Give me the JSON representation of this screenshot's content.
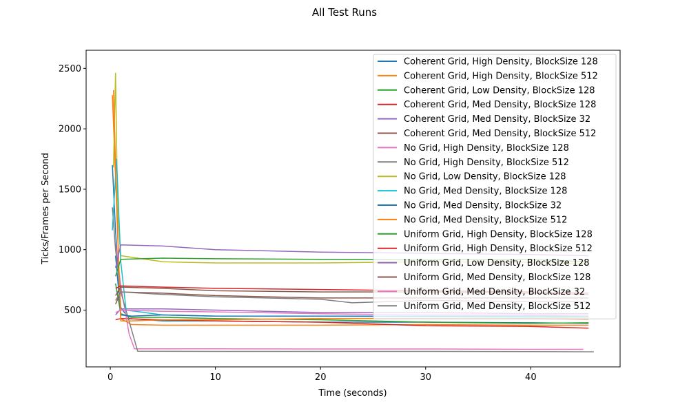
{
  "chart_data": {
    "type": "line",
    "title": "All Test Runs",
    "xlabel": "Time (seconds)",
    "ylabel": "Ticks/Frames per Second",
    "xlim": [
      -2.3,
      48.5
    ],
    "ylim": [
      30,
      2650
    ],
    "xticks": [
      0,
      10,
      20,
      30,
      40
    ],
    "yticks": [
      500,
      1000,
      1500,
      2000,
      2500
    ],
    "grid": false,
    "legend_position": "top-right",
    "series": [
      {
        "name": "Coherent Grid, High Density, BlockSize 128",
        "color": "#1f77b4",
        "points": [
          [
            0.2,
            1700
          ],
          [
            0.5,
            1150
          ],
          [
            1,
            520
          ],
          [
            1.8,
            430
          ],
          [
            5,
            410
          ],
          [
            10,
            410
          ],
          [
            20,
            400
          ],
          [
            30,
            400
          ],
          [
            40,
            395
          ],
          [
            45.5,
            390
          ]
        ]
      },
      {
        "name": "Coherent Grid, High Density, BlockSize 512",
        "color": "#ff7f0e",
        "points": [
          [
            0.2,
            2280
          ],
          [
            0.5,
            1600
          ],
          [
            1,
            430
          ],
          [
            2,
            380
          ],
          [
            5,
            375
          ],
          [
            10,
            375
          ],
          [
            20,
            375
          ],
          [
            30,
            380
          ],
          [
            40,
            375
          ],
          [
            45.5,
            375
          ]
        ]
      },
      {
        "name": "Coherent Grid, Low Density, BlockSize 128",
        "color": "#2ca02c",
        "points": [
          [
            0.5,
            720
          ],
          [
            1,
            470
          ],
          [
            2,
            440
          ],
          [
            5,
            440
          ],
          [
            10,
            430
          ],
          [
            20,
            420
          ],
          [
            30,
            400
          ],
          [
            40,
            390
          ],
          [
            45.5,
            395
          ]
        ]
      },
      {
        "name": "Coherent Grid, Med Density, BlockSize 128",
        "color": "#d62728",
        "points": [
          [
            0.5,
            420
          ],
          [
            1,
            430
          ],
          [
            5,
            420
          ],
          [
            10,
            410
          ],
          [
            20,
            400
          ],
          [
            30,
            370
          ],
          [
            40,
            365
          ],
          [
            45.5,
            350
          ]
        ]
      },
      {
        "name": "Coherent Grid, Med Density, BlockSize 32",
        "color": "#9467bd",
        "points": [
          [
            0.5,
            460
          ],
          [
            1,
            510
          ],
          [
            5,
            510
          ],
          [
            10,
            500
          ],
          [
            20,
            480
          ],
          [
            30,
            480
          ],
          [
            40,
            470
          ],
          [
            45.5,
            470
          ]
        ]
      },
      {
        "name": "Coherent Grid, Med Density, BlockSize 512",
        "color": "#8c564b",
        "points": [
          [
            0.5,
            550
          ],
          [
            1,
            650
          ],
          [
            5,
            640
          ],
          [
            10,
            620
          ],
          [
            20,
            600
          ],
          [
            30,
            600
          ],
          [
            40,
            600
          ],
          [
            45.5,
            600
          ]
        ]
      },
      {
        "name": "No Grid, High Density, BlockSize 128",
        "color": "#e377c2",
        "points": [
          [
            0.5,
            1050
          ],
          [
            1,
            700
          ],
          [
            1.8,
            300
          ],
          [
            2.3,
            180
          ],
          [
            10,
            180
          ],
          [
            20,
            178
          ],
          [
            30,
            178
          ],
          [
            40,
            175
          ],
          [
            45,
            175
          ]
        ]
      },
      {
        "name": "No Grid, High Density, BlockSize 512",
        "color": "#7f7f7f",
        "points": [
          [
            0.2,
            1350
          ],
          [
            0.5,
            1000
          ],
          [
            1,
            650
          ],
          [
            2.6,
            160
          ],
          [
            10,
            158
          ],
          [
            20,
            158
          ],
          [
            30,
            158
          ],
          [
            40,
            157
          ],
          [
            46,
            155
          ]
        ]
      },
      {
        "name": "No Grid, Low Density, BlockSize 128",
        "color": "#bcbd22",
        "points": [
          [
            0.3,
            1680
          ],
          [
            0.5,
            2460
          ],
          [
            0.7,
            1300
          ],
          [
            1,
            950
          ],
          [
            5,
            900
          ],
          [
            10,
            890
          ],
          [
            20,
            890
          ],
          [
            30,
            900
          ],
          [
            40,
            895
          ],
          [
            45.5,
            880
          ]
        ]
      },
      {
        "name": "No Grid, Med Density, BlockSize 128",
        "color": "#17becf",
        "points": [
          [
            0.2,
            1160
          ],
          [
            0.6,
            1750
          ],
          [
            1,
            900
          ],
          [
            1.5,
            500
          ],
          [
            5,
            460
          ],
          [
            10,
            450
          ],
          [
            20,
            450
          ],
          [
            30,
            445
          ],
          [
            40,
            440
          ],
          [
            45.5,
            440
          ]
        ]
      },
      {
        "name": "No Grid, Med Density, BlockSize 32",
        "color": "#1f77b4",
        "points": [
          [
            0.5,
            950
          ],
          [
            1,
            460
          ],
          [
            2,
            450
          ],
          [
            5,
            460
          ],
          [
            10,
            450
          ],
          [
            20,
            450
          ],
          [
            30,
            450
          ],
          [
            40,
            450
          ],
          [
            45.5,
            450
          ]
        ]
      },
      {
        "name": "No Grid, Med Density, BlockSize 512",
        "color": "#ff7f0e",
        "points": [
          [
            0.3,
            2320
          ],
          [
            0.6,
            1400
          ],
          [
            1,
            410
          ],
          [
            2,
            410
          ],
          [
            5,
            420
          ],
          [
            10,
            420
          ],
          [
            20,
            430
          ],
          [
            30,
            430
          ],
          [
            40,
            430
          ],
          [
            45.5,
            425
          ]
        ]
      },
      {
        "name": "Uniform Grid, High Density, BlockSize 128",
        "color": "#2ca02c",
        "points": [
          [
            0.5,
            780
          ],
          [
            1,
            920
          ],
          [
            5,
            930
          ],
          [
            10,
            925
          ],
          [
            20,
            920
          ],
          [
            30,
            915
          ],
          [
            40,
            920
          ],
          [
            45.5,
            900
          ]
        ]
      },
      {
        "name": "Uniform Grid, High Density, BlockSize 512",
        "color": "#d62728",
        "points": [
          [
            0.5,
            680
          ],
          [
            1,
            700
          ],
          [
            5,
            690
          ],
          [
            10,
            680
          ],
          [
            20,
            670
          ],
          [
            30,
            660
          ],
          [
            40,
            650
          ],
          [
            45.5,
            640
          ]
        ]
      },
      {
        "name": "Uniform Grid, Low Density, BlockSize 128",
        "color": "#9467bd",
        "points": [
          [
            0.5,
            850
          ],
          [
            1,
            1040
          ],
          [
            5,
            1030
          ],
          [
            10,
            1000
          ],
          [
            20,
            980
          ],
          [
            30,
            970
          ],
          [
            40,
            960
          ],
          [
            45.5,
            950
          ]
        ]
      },
      {
        "name": "Uniform Grid, Med Density, BlockSize 128",
        "color": "#8c564b",
        "points": [
          [
            0.5,
            620
          ],
          [
            1,
            690
          ],
          [
            5,
            680
          ],
          [
            10,
            660
          ],
          [
            20,
            650
          ],
          [
            30,
            650
          ],
          [
            40,
            640
          ],
          [
            45.5,
            630
          ]
        ]
      },
      {
        "name": "Uniform Grid, Med Density, BlockSize 32",
        "color": "#e377c2",
        "points": [
          [
            0.5,
            480
          ],
          [
            1,
            500
          ],
          [
            5,
            490
          ],
          [
            10,
            485
          ],
          [
            20,
            470
          ],
          [
            30,
            460
          ],
          [
            40,
            460
          ],
          [
            45.5,
            455
          ]
        ]
      },
      {
        "name": "Uniform Grid, Med Density, BlockSize 512",
        "color": "#7f7f7f",
        "points": [
          [
            0.5,
            580
          ],
          [
            1,
            650
          ],
          [
            5,
            630
          ],
          [
            10,
            610
          ],
          [
            20,
            590
          ],
          [
            23,
            560
          ],
          [
            30,
            580
          ],
          [
            40,
            570
          ],
          [
            45.5,
            570
          ]
        ]
      }
    ]
  }
}
